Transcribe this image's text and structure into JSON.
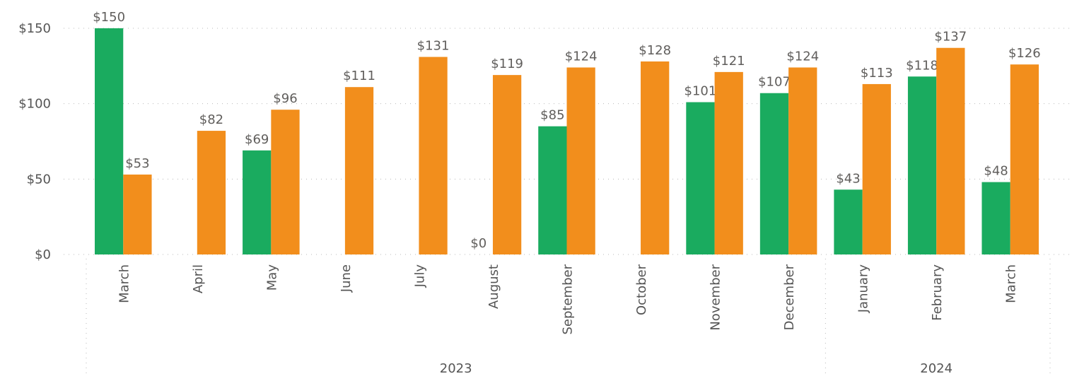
{
  "chart_data": {
    "type": "bar",
    "categories": [
      "March",
      "April",
      "May",
      "June",
      "July",
      "August",
      "September",
      "October",
      "November",
      "December",
      "January",
      "February",
      "March"
    ],
    "groups": [
      {
        "label": "2023",
        "count": 10
      },
      {
        "label": "2024",
        "count": 3
      }
    ],
    "series": [
      {
        "color": "#1aab5f",
        "values": [
          150,
          null,
          69,
          null,
          null,
          0,
          85,
          null,
          101,
          107,
          43,
          118,
          48
        ],
        "value_labels": [
          "$150",
          null,
          "$69",
          null,
          null,
          "$0",
          "$85",
          null,
          "$101",
          "$107",
          "$43",
          "$118",
          "$48"
        ]
      },
      {
        "color": "#f28e1c",
        "values": [
          53,
          82,
          96,
          111,
          131,
          119,
          124,
          128,
          121,
          124,
          113,
          137,
          126
        ],
        "value_labels": [
          "$53",
          "$82",
          "$96",
          "$111",
          "$131",
          "$119",
          "$124",
          "$128",
          "$121",
          "$124",
          "$113",
          "$137",
          "$126"
        ]
      }
    ],
    "ylim": [
      0,
      150
    ],
    "yticks": [
      {
        "value": 0,
        "label": "$0"
      },
      {
        "value": 50,
        "label": "$50"
      },
      {
        "value": 100,
        "label": "$100"
      },
      {
        "value": 150,
        "label": "$150"
      }
    ],
    "grid": true
  }
}
